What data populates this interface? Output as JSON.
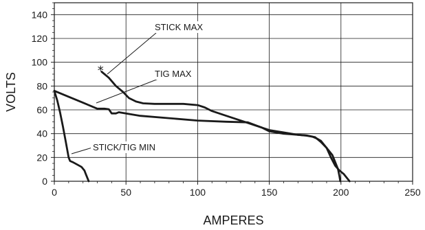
{
  "chart_data": {
    "type": "line",
    "xlabel": "AMPERES",
    "ylabel": "VOLTS",
    "xlim": [
      0,
      250
    ],
    "ylim": [
      0,
      150
    ],
    "xticks": [
      0,
      50,
      100,
      150,
      200,
      250
    ],
    "yticks": [
      0,
      20,
      40,
      60,
      80,
      100,
      120,
      140
    ],
    "grid": true,
    "series": [
      {
        "name": "STICK MAX",
        "marker_at_start": "*",
        "points": [
          [
            33,
            92
          ],
          [
            38,
            87
          ],
          [
            43,
            80
          ],
          [
            48,
            75
          ],
          [
            52,
            70
          ],
          [
            57,
            67
          ],
          [
            62,
            65.5
          ],
          [
            70,
            65
          ],
          [
            80,
            65
          ],
          [
            90,
            65
          ],
          [
            100,
            64
          ],
          [
            105,
            62
          ],
          [
            110,
            59
          ],
          [
            120,
            55
          ],
          [
            130,
            51
          ],
          [
            140,
            47
          ],
          [
            150,
            43
          ],
          [
            160,
            41
          ],
          [
            170,
            39
          ],
          [
            176,
            38.5
          ],
          [
            182,
            37
          ],
          [
            186,
            33
          ],
          [
            190,
            28
          ],
          [
            194,
            22
          ],
          [
            196,
            16
          ],
          [
            198,
            10
          ],
          [
            199,
            4
          ],
          [
            199.5,
            0
          ]
        ]
      },
      {
        "name": "TIG MAX",
        "points": [
          [
            0,
            76
          ],
          [
            10,
            71
          ],
          [
            20,
            66
          ],
          [
            30,
            61
          ],
          [
            35,
            61
          ],
          [
            38,
            60.5
          ],
          [
            40,
            57
          ],
          [
            43,
            57
          ],
          [
            45,
            58
          ],
          [
            50,
            57
          ],
          [
            60,
            55
          ],
          [
            80,
            53
          ],
          [
            100,
            51
          ],
          [
            120,
            50
          ],
          [
            135,
            49.5
          ],
          [
            145,
            45
          ],
          [
            150,
            42
          ],
          [
            160,
            40
          ],
          [
            165,
            39.5
          ],
          [
            170,
            39
          ],
          [
            175,
            38.5
          ],
          [
            180,
            37.5
          ],
          [
            183,
            36
          ],
          [
            186,
            34
          ],
          [
            190,
            28
          ],
          [
            193,
            20
          ],
          [
            196,
            13
          ],
          [
            199,
            9
          ],
          [
            202,
            6
          ],
          [
            204,
            3
          ],
          [
            206,
            0
          ]
        ]
      },
      {
        "name": "STICK/TIG MIN",
        "points": [
          [
            0,
            76
          ],
          [
            2,
            68
          ],
          [
            4,
            58
          ],
          [
            6,
            46
          ],
          [
            8,
            33
          ],
          [
            10,
            20
          ],
          [
            11,
            17
          ],
          [
            13,
            16
          ],
          [
            16,
            14
          ],
          [
            19,
            12
          ],
          [
            21,
            9
          ],
          [
            22,
            6
          ],
          [
            23,
            3
          ],
          [
            24,
            0
          ]
        ]
      }
    ],
    "annotations": [
      {
        "text": "STICK MAX",
        "series": 0
      },
      {
        "text": "TIG MAX",
        "series": 1
      },
      {
        "text": "STICK/TIG MIN",
        "series": 2
      }
    ]
  }
}
